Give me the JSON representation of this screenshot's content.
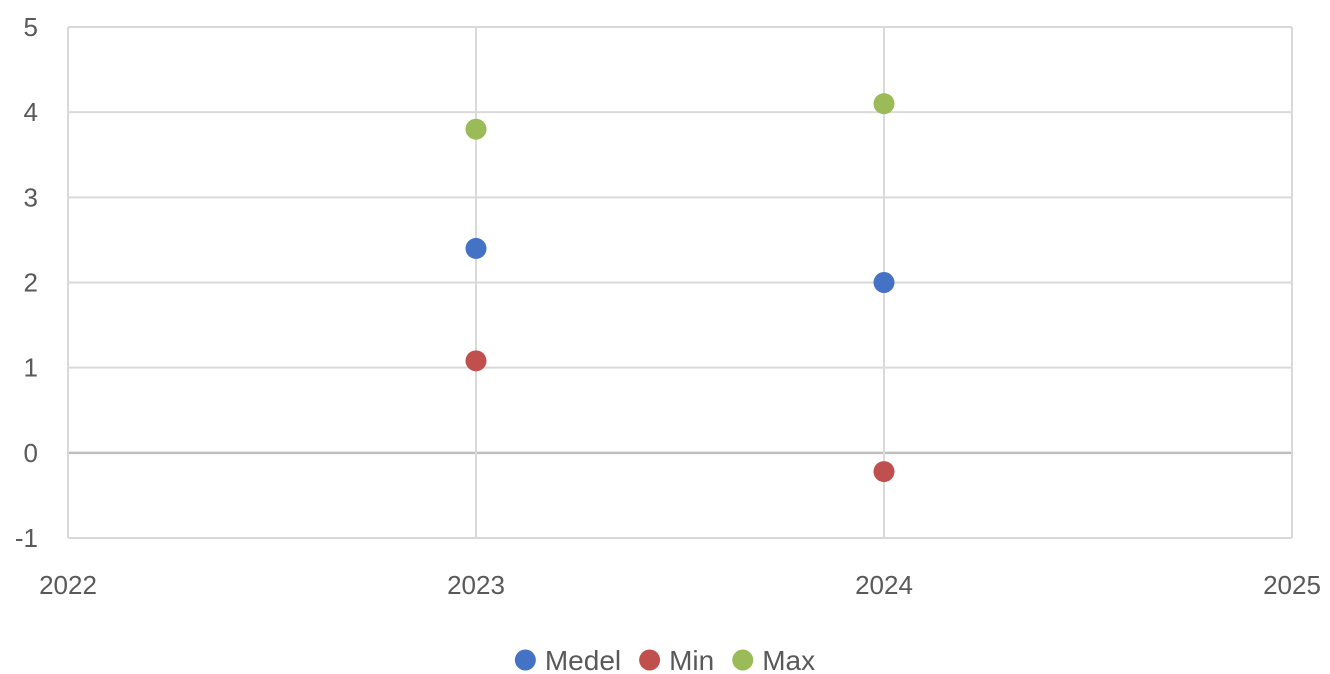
{
  "chart_data": {
    "type": "scatter",
    "title": "",
    "xlabel": "",
    "ylabel": "",
    "xlim": [
      2022,
      2025
    ],
    "ylim": [
      -1,
      5
    ],
    "x_ticks": [
      2022,
      2023,
      2024,
      2025
    ],
    "y_ticks": [
      -1,
      0,
      1,
      2,
      3,
      4,
      5
    ],
    "grid": true,
    "legend_position": "bottom",
    "series": [
      {
        "name": "Medel",
        "color": "#4472C4",
        "points": [
          {
            "x": 2023,
            "y": 2.4
          },
          {
            "x": 2024,
            "y": 2.0
          }
        ]
      },
      {
        "name": "Min",
        "color": "#C0504D",
        "points": [
          {
            "x": 2023,
            "y": 1.08
          },
          {
            "x": 2024,
            "y": -0.22
          }
        ]
      },
      {
        "name": "Max",
        "color": "#9BBB59",
        "points": [
          {
            "x": 2023,
            "y": 3.8
          },
          {
            "x": 2024,
            "y": 4.1
          }
        ]
      }
    ]
  }
}
